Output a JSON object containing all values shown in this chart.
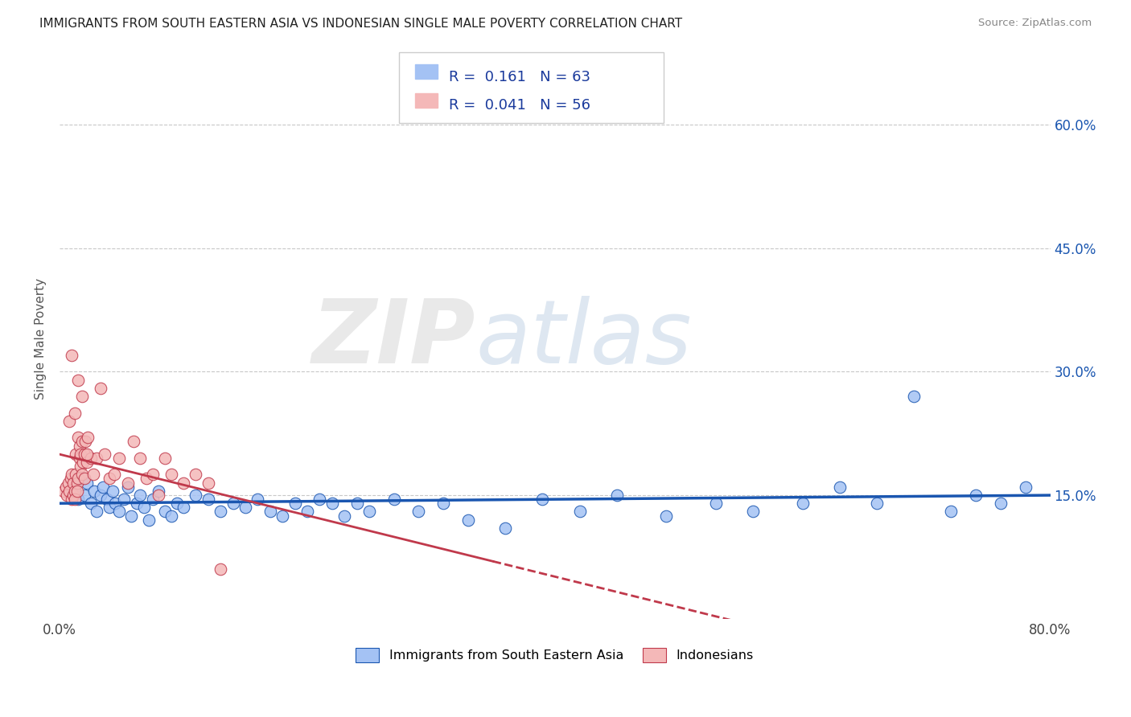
{
  "title": "IMMIGRANTS FROM SOUTH EASTERN ASIA VS INDONESIAN SINGLE MALE POVERTY CORRELATION CHART",
  "source": "Source: ZipAtlas.com",
  "ylabel": "Single Male Poverty",
  "legend_labels": [
    "Immigrants from South Eastern Asia",
    "Indonesians"
  ],
  "r_blue": 0.161,
  "n_blue": 63,
  "r_pink": 0.041,
  "n_pink": 56,
  "blue_color": "#a4c2f4",
  "pink_color": "#f4b8b8",
  "blue_line_color": "#1a56b0",
  "pink_line_color": "#c0394b",
  "xlim": [
    0.0,
    0.8
  ],
  "ylim": [
    0.0,
    0.68
  ],
  "right_yticks": [
    "60.0%",
    "45.0%",
    "30.0%",
    "15.0%"
  ],
  "right_ytick_vals": [
    0.6,
    0.45,
    0.3,
    0.15
  ],
  "blue_scatter_x": [
    0.01,
    0.012,
    0.015,
    0.018,
    0.02,
    0.022,
    0.025,
    0.028,
    0.03,
    0.033,
    0.035,
    0.038,
    0.04,
    0.043,
    0.045,
    0.048,
    0.052,
    0.055,
    0.058,
    0.062,
    0.065,
    0.068,
    0.072,
    0.075,
    0.08,
    0.085,
    0.09,
    0.095,
    0.1,
    0.11,
    0.12,
    0.13,
    0.14,
    0.15,
    0.16,
    0.17,
    0.18,
    0.19,
    0.2,
    0.21,
    0.22,
    0.23,
    0.24,
    0.25,
    0.27,
    0.29,
    0.31,
    0.33,
    0.36,
    0.39,
    0.42,
    0.45,
    0.49,
    0.53,
    0.56,
    0.6,
    0.63,
    0.66,
    0.69,
    0.72,
    0.74,
    0.76,
    0.78
  ],
  "blue_scatter_y": [
    0.155,
    0.16,
    0.145,
    0.17,
    0.15,
    0.165,
    0.14,
    0.155,
    0.13,
    0.15,
    0.16,
    0.145,
    0.135,
    0.155,
    0.14,
    0.13,
    0.145,
    0.16,
    0.125,
    0.14,
    0.15,
    0.135,
    0.12,
    0.145,
    0.155,
    0.13,
    0.125,
    0.14,
    0.135,
    0.15,
    0.145,
    0.13,
    0.14,
    0.135,
    0.145,
    0.13,
    0.125,
    0.14,
    0.13,
    0.145,
    0.14,
    0.125,
    0.14,
    0.13,
    0.145,
    0.13,
    0.14,
    0.12,
    0.11,
    0.145,
    0.13,
    0.15,
    0.125,
    0.14,
    0.13,
    0.14,
    0.16,
    0.14,
    0.27,
    0.13,
    0.15,
    0.14,
    0.16
  ],
  "pink_scatter_x": [
    0.003,
    0.005,
    0.006,
    0.007,
    0.008,
    0.009,
    0.01,
    0.01,
    0.011,
    0.011,
    0.012,
    0.012,
    0.013,
    0.013,
    0.014,
    0.014,
    0.015,
    0.015,
    0.016,
    0.016,
    0.017,
    0.017,
    0.018,
    0.018,
    0.019,
    0.02,
    0.02,
    0.021,
    0.022,
    0.023,
    0.025,
    0.027,
    0.03,
    0.033,
    0.036,
    0.04,
    0.044,
    0.048,
    0.055,
    0.06,
    0.065,
    0.07,
    0.075,
    0.08,
    0.085,
    0.09,
    0.1,
    0.11,
    0.12,
    0.13,
    0.008,
    0.01,
    0.012,
    0.015,
    0.018,
    0.022
  ],
  "pink_scatter_y": [
    0.155,
    0.16,
    0.15,
    0.165,
    0.155,
    0.17,
    0.145,
    0.175,
    0.15,
    0.165,
    0.155,
    0.145,
    0.2,
    0.175,
    0.165,
    0.155,
    0.22,
    0.17,
    0.195,
    0.21,
    0.185,
    0.2,
    0.175,
    0.215,
    0.19,
    0.17,
    0.2,
    0.215,
    0.19,
    0.22,
    0.195,
    0.175,
    0.195,
    0.28,
    0.2,
    0.17,
    0.175,
    0.195,
    0.165,
    0.215,
    0.195,
    0.17,
    0.175,
    0.15,
    0.195,
    0.175,
    0.165,
    0.175,
    0.165,
    0.06,
    0.24,
    0.32,
    0.25,
    0.29,
    0.27,
    0.2
  ]
}
